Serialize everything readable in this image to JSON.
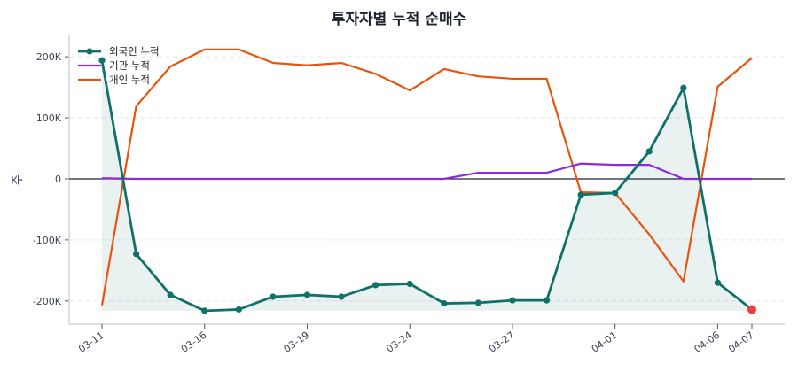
{
  "chart_data": {
    "type": "line",
    "title": "투자자별 누적 순매수",
    "ylabel": "주",
    "xlabel": "",
    "x": [
      "03-11",
      "03-12",
      "03-13",
      "03-16",
      "03-17",
      "03-18",
      "03-19",
      "03-20",
      "03-23",
      "03-24",
      "03-25",
      "03-26",
      "03-27",
      "03-30",
      "03-31",
      "04-01",
      "04-02",
      "04-03",
      "04-06",
      "04-07"
    ],
    "xtick_labels": [
      "03-11",
      "03-16",
      "03-19",
      "03-24",
      "03-27",
      "04-01",
      "04-06",
      "04-07"
    ],
    "yticks": [
      -200000,
      -100000,
      0,
      100000,
      200000
    ],
    "ytick_labels": [
      "-200K",
      "-100K",
      "0",
      "100K",
      "200K"
    ],
    "ylim": [
      -238000,
      235000
    ],
    "grid": "horizontal dashed",
    "legend": "top-left",
    "series": [
      {
        "name": "외국인 누적",
        "color": "#0f7168",
        "markers": true,
        "fill": true,
        "values": [
          194000,
          -123000,
          -190000,
          -216000,
          -214000,
          -193000,
          -190000,
          -193000,
          -174000,
          -172000,
          -204000,
          -203000,
          -199000,
          -199000,
          -26000,
          -23000,
          45000,
          149000,
          -170000,
          -214000
        ]
      },
      {
        "name": "기관 누적",
        "color": "#8a2be2",
        "values": [
          1000,
          0,
          0,
          0,
          0,
          0,
          0,
          0,
          0,
          0,
          0,
          10000,
          10000,
          10000,
          25000,
          23000,
          23000,
          0,
          0,
          0
        ]
      },
      {
        "name": "개인 누적",
        "color": "#e8530e",
        "values": [
          -207000,
          119000,
          184000,
          212000,
          212000,
          190000,
          186000,
          190000,
          172000,
          145000,
          180000,
          168000,
          164000,
          164000,
          -22000,
          -23000,
          -91000,
          -168000,
          151000,
          198000
        ]
      }
    ],
    "highlight_last_color": "#e84040",
    "zero_line_color": "#1f2340"
  }
}
